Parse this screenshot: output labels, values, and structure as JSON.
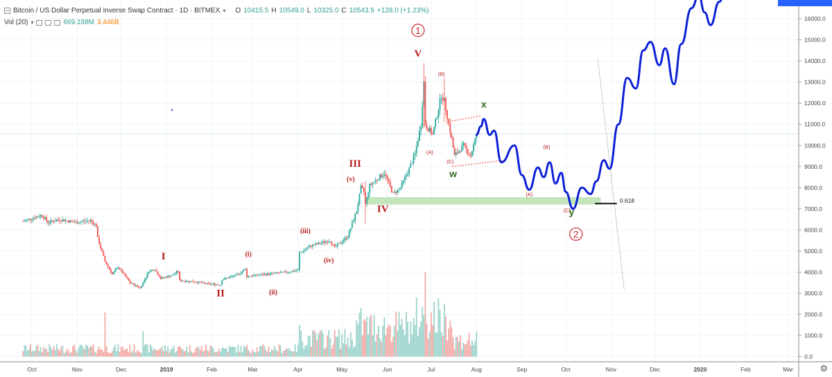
{
  "header": {
    "title": "Bitcoin / US Dollar Perpetual Inverse Swap Contract · 1D · BITMEX",
    "open_label": "O",
    "open": "10415.5",
    "high_label": "H",
    "high": "10549.0",
    "low_label": "L",
    "low": "10325.0",
    "close_label": "C",
    "close": "10543.5",
    "change": "+128.0 (+1.23%)",
    "vol_label": "Vol (20)",
    "vol_value": "669.188M",
    "vol_ma": "3.446B"
  },
  "colors": {
    "up": "#26a69a",
    "down": "#ef5350",
    "vol_up": "#9ad3cb",
    "vol_down": "#f3a9a6",
    "projection": "#0b1fd6",
    "wave_label": "#b71c1c",
    "wxy_label": "#33691e",
    "support_zone": "#b9e0b0",
    "price_line": "#4aa3b0",
    "axis_text": "#444444"
  },
  "chart_data": {
    "type": "candlestick",
    "price_axis": {
      "ticks": [
        "16000.0",
        "15000.0",
        "14000.0",
        "13000.0",
        "12000.0",
        "11000.0",
        "10000.0",
        "9000.0",
        "8000.0",
        "7000.0",
        "6000.0",
        "5000.0",
        "4000.0",
        "3000.0",
        "2000.0",
        "1000.0",
        "0.0"
      ]
    },
    "time_axis": {
      "ticks": [
        "Oct",
        "Nov",
        "Dec",
        "2019",
        "Feb",
        "Mar",
        "Apr",
        "May",
        "Jun",
        "Jul",
        "Aug",
        "Sep",
        "Oct",
        "Nov",
        "Dec",
        "2020",
        "Feb",
        "Mar"
      ]
    },
    "price_path": [
      [
        "2018-09-25",
        6400
      ],
      [
        "2018-10-01",
        6550
      ],
      [
        "2018-10-08",
        6700
      ],
      [
        "2018-10-12",
        6350
      ],
      [
        "2018-10-20",
        6500
      ],
      [
        "2018-10-31",
        6350
      ],
      [
        "2018-11-10",
        6450
      ],
      [
        "2018-11-14",
        6200
      ],
      [
        "2018-11-15",
        5600
      ],
      [
        "2018-11-20",
        4500
      ],
      [
        "2018-11-25",
        3900
      ],
      [
        "2018-11-29",
        4250
      ],
      [
        "2018-12-07",
        3500
      ],
      [
        "2018-12-14",
        3250
      ],
      [
        "2018-12-20",
        4050
      ],
      [
        "2018-12-24",
        4150
      ],
      [
        "2018-12-28",
        3700
      ],
      [
        "2019-01-05",
        3850
      ],
      [
        "2019-01-09",
        4050
      ],
      [
        "2019-01-10",
        3600
      ],
      [
        "2019-01-20",
        3550
      ],
      [
        "2019-01-28",
        3450
      ],
      [
        "2019-02-07",
        3400
      ],
      [
        "2019-02-08",
        3650
      ],
      [
        "2019-02-18",
        3850
      ],
      [
        "2019-02-24",
        4150
      ],
      [
        "2019-02-25",
        3800
      ],
      [
        "2019-03-10",
        3900
      ],
      [
        "2019-03-25",
        4000
      ],
      [
        "2019-04-01",
        4100
      ],
      [
        "2019-04-02",
        4900
      ],
      [
        "2019-04-10",
        5250
      ],
      [
        "2019-04-23",
        5500
      ],
      [
        "2019-04-26",
        5150
      ],
      [
        "2019-05-05",
        5700
      ],
      [
        "2019-05-11",
        6900
      ],
      [
        "2019-05-14",
        8000
      ],
      [
        "2019-05-16",
        7800
      ],
      [
        "2019-05-17",
        7200
      ],
      [
        "2019-05-20",
        8100
      ],
      [
        "2019-05-30",
        8700
      ],
      [
        "2019-06-05",
        7700
      ],
      [
        "2019-06-10",
        8000
      ],
      [
        "2019-06-16",
        8900
      ],
      [
        "2019-06-20",
        9600
      ],
      [
        "2019-06-24",
        11000
      ],
      [
        "2019-06-26",
        13000
      ],
      [
        "2019-06-27",
        11000
      ],
      [
        "2019-07-02",
        10500
      ],
      [
        "2019-07-08",
        12400
      ],
      [
        "2019-07-10",
        12100
      ],
      [
        "2019-07-15",
        10300
      ],
      [
        "2019-07-17",
        9500
      ],
      [
        "2019-07-23",
        10000
      ],
      [
        "2019-07-28",
        9500
      ],
      [
        "2019-08-01",
        10500
      ]
    ],
    "candle_wicks": [
      [
        "2019-06-26",
        13900,
        10800
      ],
      [
        "2019-07-10",
        13200,
        11100
      ],
      [
        "2019-05-17",
        8300,
        6300
      ]
    ],
    "projection_path": [
      [
        "2019-08-01",
        10500
      ],
      [
        "2019-08-04",
        10900
      ],
      [
        "2019-08-06",
        11250
      ],
      [
        "2019-08-10",
        10500
      ],
      [
        "2019-08-13",
        10700
      ],
      [
        "2019-08-18",
        9200
      ],
      [
        "2019-08-27",
        10000
      ],
      [
        "2019-09-01",
        8600
      ],
      [
        "2019-09-06",
        7900
      ],
      [
        "2019-09-12",
        8950
      ],
      [
        "2019-09-16",
        8500
      ],
      [
        "2019-09-20",
        9200
      ],
      [
        "2019-09-24",
        8200
      ],
      [
        "2019-09-28",
        8700
      ],
      [
        "2019-10-01",
        7800
      ],
      [
        "2019-10-06",
        7000
      ],
      [
        "2019-10-12",
        8000
      ],
      [
        "2019-10-18",
        7700
      ],
      [
        "2019-10-22",
        8300
      ],
      [
        "2019-10-27",
        9300
      ],
      [
        "2019-10-31",
        8900
      ],
      [
        "2019-11-06",
        11000
      ],
      [
        "2019-11-12",
        13200
      ],
      [
        "2019-11-18",
        12700
      ],
      [
        "2019-11-23",
        14500
      ],
      [
        "2019-11-28",
        14900
      ],
      [
        "2019-12-04",
        13800
      ],
      [
        "2019-12-08",
        14600
      ],
      [
        "2019-12-14",
        12900
      ],
      [
        "2019-12-19",
        14800
      ],
      [
        "2019-12-26",
        16500
      ],
      [
        "2019-12-31",
        17100
      ],
      [
        "2020-01-04",
        16300
      ],
      [
        "2020-01-08",
        15700
      ],
      [
        "2020-01-14",
        16800
      ],
      [
        "2020-01-22",
        19500
      ]
    ],
    "volume": [
      {
        "start": "2018-09-24",
        "end": "2019-04-01",
        "base": 400
      },
      {
        "start": "2019-04-02",
        "end": "2019-05-10",
        "base": 900
      },
      {
        "start": "2019-05-11",
        "end": "2019-06-20",
        "base": 1500
      },
      {
        "start": "2019-06-21",
        "end": "2019-07-15",
        "base": 1900
      },
      {
        "start": "2019-07-16",
        "end": "2019-08-01",
        "base": 800
      }
    ],
    "volume_spikes": [
      [
        "2018-11-20",
        2100
      ],
      [
        "2018-12-16",
        1200
      ],
      [
        "2019-04-02",
        1500
      ],
      [
        "2019-05-14",
        2300
      ],
      [
        "2019-06-27",
        4000
      ],
      [
        "2019-07-11",
        1900
      ],
      [
        "2019-06-10",
        1500
      ]
    ],
    "current_price": 10543.5,
    "support_zone": {
      "from": "2019-05-18",
      "to": "2019-10-25",
      "low": 7200,
      "high": 7550
    },
    "fib_line": {
      "from": "2019-10-21",
      "to": "2019-11-05",
      "price": 7250,
      "label": "0.618"
    },
    "dotted_trend_line": [
      [
        "2019-10-23",
        14050
      ],
      [
        "2019-11-10",
        3150
      ]
    ],
    "channel_lines": [
      [
        [
          "2019-07-15",
          11150
        ],
        [
          "2019-08-04",
          11400
        ]
      ],
      [
        [
          "2019-07-15",
          9000
        ],
        [
          "2019-08-20",
          9300
        ]
      ]
    ],
    "wave_labels": [
      {
        "text": "I",
        "date": "2018-12-30",
        "price": 4600,
        "kind": "roman"
      },
      {
        "text": "II",
        "date": "2019-02-07",
        "price": 2850,
        "kind": "roman"
      },
      {
        "text": "III",
        "date": "2019-05-10",
        "price": 9000,
        "kind": "roman"
      },
      {
        "text": "IV",
        "date": "2019-05-29",
        "price": 6850,
        "kind": "roman"
      },
      {
        "text": "V",
        "date": "2019-06-22",
        "price": 14200,
        "kind": "roman"
      },
      {
        "text": "(i)",
        "date": "2019-02-26",
        "price": 4750,
        "kind": "minor"
      },
      {
        "text": "(ii)",
        "date": "2019-03-15",
        "price": 2950,
        "kind": "minor"
      },
      {
        "text": "(iii)",
        "date": "2019-04-06",
        "price": 5850,
        "kind": "minor"
      },
      {
        "text": "(iv)",
        "date": "2019-04-22",
        "price": 4450,
        "kind": "minor"
      },
      {
        "text": "(v)",
        "date": "2019-05-07",
        "price": 8300,
        "kind": "minor"
      },
      {
        "text": "(A)",
        "date": "2019-06-30",
        "price": 9600,
        "kind": "small"
      },
      {
        "text": "(B)",
        "date": "2019-07-08",
        "price": 13300,
        "kind": "small"
      },
      {
        "text": "(C)",
        "date": "2019-07-14",
        "price": 9150,
        "kind": "small"
      },
      {
        "text": "(B)",
        "date": "2019-09-18",
        "price": 9850,
        "kind": "small"
      },
      {
        "text": "(A)",
        "date": "2019-09-06",
        "price": 7600,
        "kind": "small"
      },
      {
        "text": "(C)",
        "date": "2019-10-02",
        "price": 6850,
        "kind": "small"
      },
      {
        "text": "w",
        "date": "2019-07-16",
        "price": 8500,
        "kind": "wxy"
      },
      {
        "text": "x",
        "date": "2019-08-06",
        "price": 11800,
        "kind": "wxy"
      },
      {
        "text": "y",
        "date": "2019-10-05",
        "price": 6700,
        "kind": "wxy"
      }
    ],
    "circled_labels": [
      {
        "text": "1",
        "date": "2019-06-22",
        "price": 15450
      },
      {
        "text": "2",
        "date": "2019-10-08",
        "price": 5800
      }
    ]
  }
}
